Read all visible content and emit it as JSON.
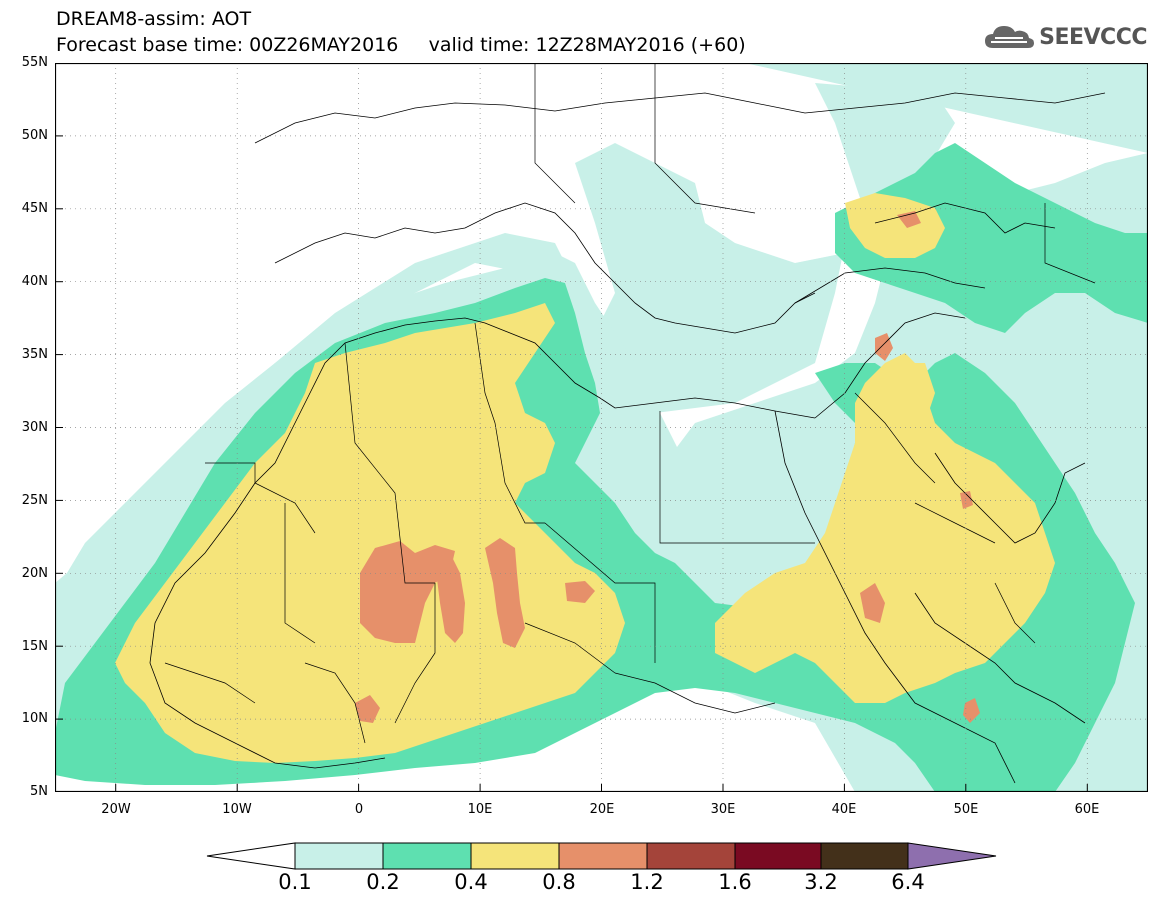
{
  "header": {
    "title_line1": "DREAM8-assim: AOT",
    "title_line2": "Forecast base time: 00Z26MAY2016     valid time: 12Z28MAY2016 (+60)",
    "logo_text": "SEEVCCC"
  },
  "map": {
    "lat_labels": [
      "55N",
      "50N",
      "45N",
      "40N",
      "35N",
      "30N",
      "25N",
      "20N",
      "15N",
      "10N",
      "5N"
    ],
    "lon_labels": [
      "20W",
      "10W",
      "0",
      "10E",
      "20E",
      "30E",
      "40E",
      "50E",
      "60E"
    ],
    "extent": {
      "lon_min": -25,
      "lon_max": 65,
      "lat_min": 5,
      "lat_max": 55
    }
  },
  "colorbar": {
    "labels": [
      "0.1",
      "0.2",
      "0.4",
      "0.8",
      "1.2",
      "1.6",
      "3.2",
      "6.4"
    ],
    "colors": [
      "#ffffff",
      "#c8f0e8",
      "#5ee0b0",
      "#f5e47a",
      "#e6906a",
      "#a4443a",
      "#7a0a22",
      "#43301a",
      "#8e6fae"
    ]
  },
  "colors": {
    "c1": "#c8f0e8",
    "c2": "#5ee0b0",
    "c3": "#f5e47a",
    "c4": "#e6906a"
  }
}
